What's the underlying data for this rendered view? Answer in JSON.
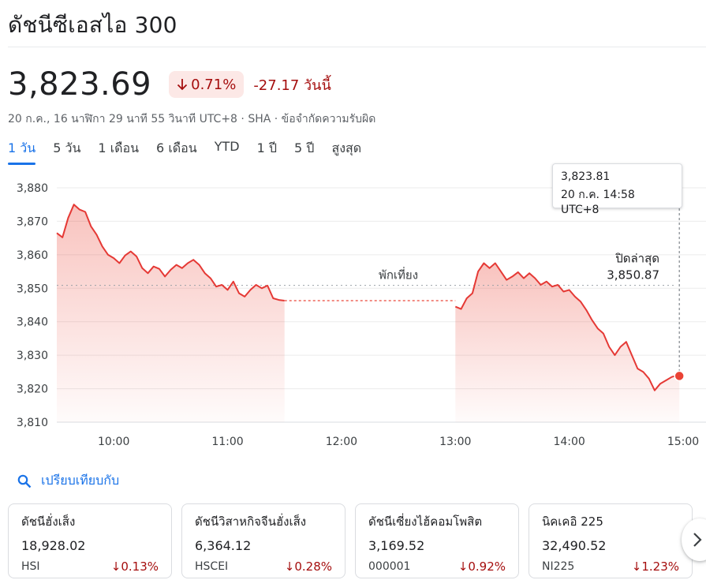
{
  "header": {
    "title": "ดัชนีซีเอสไอ 300",
    "price": "3,823.69",
    "percent_change": "0.71%",
    "abs_change": "-27.17 วันนี้",
    "meta": "20 ก.ค., 16 นาฬิกา 29 นาที 55 วินาที UTC+8 · SHA · ข้อจำกัดความรับผิด"
  },
  "tabs": [
    {
      "label": "1 วัน",
      "active": true
    },
    {
      "label": "5 วัน",
      "active": false
    },
    {
      "label": "1 เดือน",
      "active": false
    },
    {
      "label": "6 เดือน",
      "active": false
    },
    {
      "label": "YTD",
      "active": false
    },
    {
      "label": "1 ปี",
      "active": false
    },
    {
      "label": "5 ปี",
      "active": false
    },
    {
      "label": "สูงสุด",
      "active": false
    }
  ],
  "tooltip": {
    "value": "3,823.81",
    "time": "20 ก.ค. 14:58 UTC+8"
  },
  "colors": {
    "down": "#e53935",
    "down_text": "#a50e0e",
    "badge_bg": "#fce8e6",
    "accent": "#1a73e8"
  },
  "chart_data": {
    "type": "line",
    "x_ticks": [
      "10:00",
      "11:00",
      "12:00",
      "13:00",
      "14:00",
      "15:00"
    ],
    "y_ticks": [
      "3,880",
      "3,870",
      "3,860",
      "3,850",
      "3,840",
      "3,830",
      "3,820",
      "3,810"
    ],
    "ylim": [
      3810,
      3880
    ],
    "xlim": [
      "09:30",
      "15:00"
    ],
    "grid": true,
    "lunch_break": {
      "start": "11:30",
      "end": "13:00",
      "label": "พักเที่ยง"
    },
    "previous_close": {
      "label": "ปิดล่าสุด",
      "value_label": "3,850.87",
      "value": 3850.87
    },
    "current_point": {
      "time": "14:58",
      "value": 3823.81
    },
    "series": [
      {
        "points": [
          [
            "09:30",
            3866.5
          ],
          [
            "09:33",
            3865.2
          ],
          [
            "09:36",
            3871.0
          ],
          [
            "09:39",
            3875.0
          ],
          [
            "09:42",
            3873.5
          ],
          [
            "09:45",
            3872.8
          ],
          [
            "09:48",
            3868.5
          ],
          [
            "09:51",
            3866.0
          ],
          [
            "09:54",
            3862.5
          ],
          [
            "09:57",
            3860.0
          ],
          [
            "10:00",
            3859.0
          ],
          [
            "10:03",
            3857.5
          ],
          [
            "10:06",
            3859.8
          ],
          [
            "10:09",
            3861.0
          ],
          [
            "10:12",
            3859.5
          ],
          [
            "10:15",
            3856.0
          ],
          [
            "10:18",
            3854.5
          ],
          [
            "10:21",
            3856.5
          ],
          [
            "10:24",
            3855.8
          ],
          [
            "10:27",
            3853.5
          ],
          [
            "10:30",
            3855.5
          ],
          [
            "10:33",
            3857.0
          ],
          [
            "10:36",
            3856.0
          ],
          [
            "10:39",
            3857.5
          ],
          [
            "10:42",
            3858.5
          ],
          [
            "10:45",
            3857.0
          ],
          [
            "10:48",
            3854.5
          ],
          [
            "10:51",
            3853.0
          ],
          [
            "10:54",
            3850.5
          ],
          [
            "10:57",
            3851.0
          ],
          [
            "11:00",
            3849.5
          ],
          [
            "11:03",
            3852.0
          ],
          [
            "11:06",
            3848.5
          ],
          [
            "11:09",
            3847.5
          ],
          [
            "11:12",
            3849.5
          ],
          [
            "11:15",
            3851.0
          ],
          [
            "11:18",
            3850.0
          ],
          [
            "11:21",
            3850.8
          ],
          [
            "11:24",
            3847.0
          ],
          [
            "11:27",
            3846.5
          ],
          [
            "11:30",
            3846.3
          ]
        ]
      },
      {
        "points": [
          [
            "13:00",
            3844.5
          ],
          [
            "13:03",
            3843.8
          ],
          [
            "13:06",
            3847.0
          ],
          [
            "13:09",
            3848.5
          ],
          [
            "13:12",
            3855.0
          ],
          [
            "13:15",
            3857.5
          ],
          [
            "13:18",
            3856.0
          ],
          [
            "13:21",
            3857.5
          ],
          [
            "13:24",
            3855.0
          ],
          [
            "13:27",
            3852.5
          ],
          [
            "13:30",
            3853.5
          ],
          [
            "13:33",
            3854.8
          ],
          [
            "13:36",
            3853.0
          ],
          [
            "13:39",
            3854.5
          ],
          [
            "13:42",
            3853.0
          ],
          [
            "13:45",
            3851.0
          ],
          [
            "13:48",
            3852.0
          ],
          [
            "13:51",
            3850.5
          ],
          [
            "13:54",
            3851.0
          ],
          [
            "13:57",
            3849.0
          ],
          [
            "14:00",
            3849.5
          ],
          [
            "14:03",
            3847.5
          ],
          [
            "14:06",
            3846.0
          ],
          [
            "14:09",
            3843.5
          ],
          [
            "14:12",
            3840.5
          ],
          [
            "14:15",
            3838.0
          ],
          [
            "14:18",
            3836.5
          ],
          [
            "14:21",
            3832.5
          ],
          [
            "14:24",
            3830.0
          ],
          [
            "14:27",
            3832.5
          ],
          [
            "14:30",
            3834.0
          ],
          [
            "14:33",
            3830.0
          ],
          [
            "14:36",
            3826.0
          ],
          [
            "14:39",
            3825.0
          ],
          [
            "14:42",
            3823.0
          ],
          [
            "14:45",
            3819.5
          ],
          [
            "14:48",
            3821.5
          ],
          [
            "14:51",
            3822.5
          ],
          [
            "14:54",
            3823.5
          ],
          [
            "14:57",
            3824.0
          ],
          [
            "14:58",
            3823.81
          ]
        ]
      }
    ]
  },
  "compare": {
    "label": "เปรียบเทียบกับ"
  },
  "cards": [
    {
      "name": "ดัชนีฮั่งเส็ง",
      "value": "18,928.02",
      "symbol": "HSI",
      "change": "0.13%"
    },
    {
      "name": "ดัชนีวิสาหกิจจีนฮั่งเส็ง",
      "value": "6,364.12",
      "symbol": "HSCEI",
      "change": "0.28%"
    },
    {
      "name": "ดัชนีเซี่ยงไฮ้คอมโพสิต",
      "value": "3,169.52",
      "symbol": "000001",
      "change": "0.92%"
    },
    {
      "name": "นิคเคอิ 225",
      "value": "32,490.52",
      "symbol": "NI225",
      "change": "1.23%"
    }
  ]
}
